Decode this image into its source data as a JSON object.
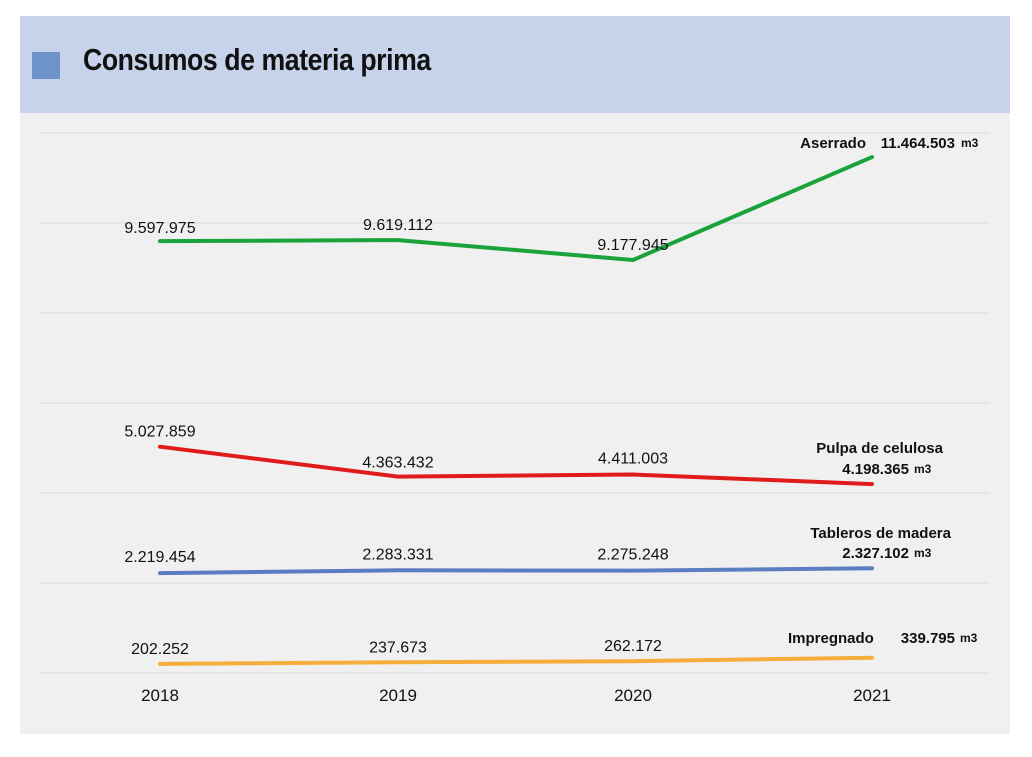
{
  "header": {
    "title": "Consumos de materia prima"
  },
  "colors": {
    "header_bg": "#c7d3ea",
    "header_square": "#6e93c9",
    "plot_bg": "#f0f0f0"
  },
  "chart_data": {
    "type": "line",
    "title": "Consumos de materia prima",
    "categories": [
      "2018",
      "2019",
      "2020",
      "2021"
    ],
    "unit": "m3",
    "grid": true,
    "ylim": [
      0,
      12000000
    ],
    "series": [
      {
        "name": "Aserrado",
        "color": "#1aa33a",
        "values": [
          9597975,
          9619112,
          9177945,
          11464503
        ],
        "labels": [
          "9.597.975",
          "9.619.112",
          "9.177.945",
          "11.464.503"
        ]
      },
      {
        "name": "Pulpa de celulosa",
        "color": "#e01b1b",
        "values": [
          5027859,
          4363432,
          4411003,
          4198365
        ],
        "labels": [
          "5.027.859",
          "4.363.432",
          "4.411.003",
          "4.198.365"
        ]
      },
      {
        "name": "Tableros de madera",
        "color": "#5b7ec2",
        "values": [
          2219454,
          2283331,
          2275248,
          2327102
        ],
        "labels": [
          "2.219.454",
          "2.283.331",
          "2.275.248",
          "2.327.102"
        ]
      },
      {
        "name": "Impregnado",
        "color": "#f5ae3c",
        "values": [
          202252,
          237673,
          262172,
          339795
        ],
        "labels": [
          "202.252",
          "237.673",
          "262.172",
          "339.795"
        ]
      }
    ]
  }
}
